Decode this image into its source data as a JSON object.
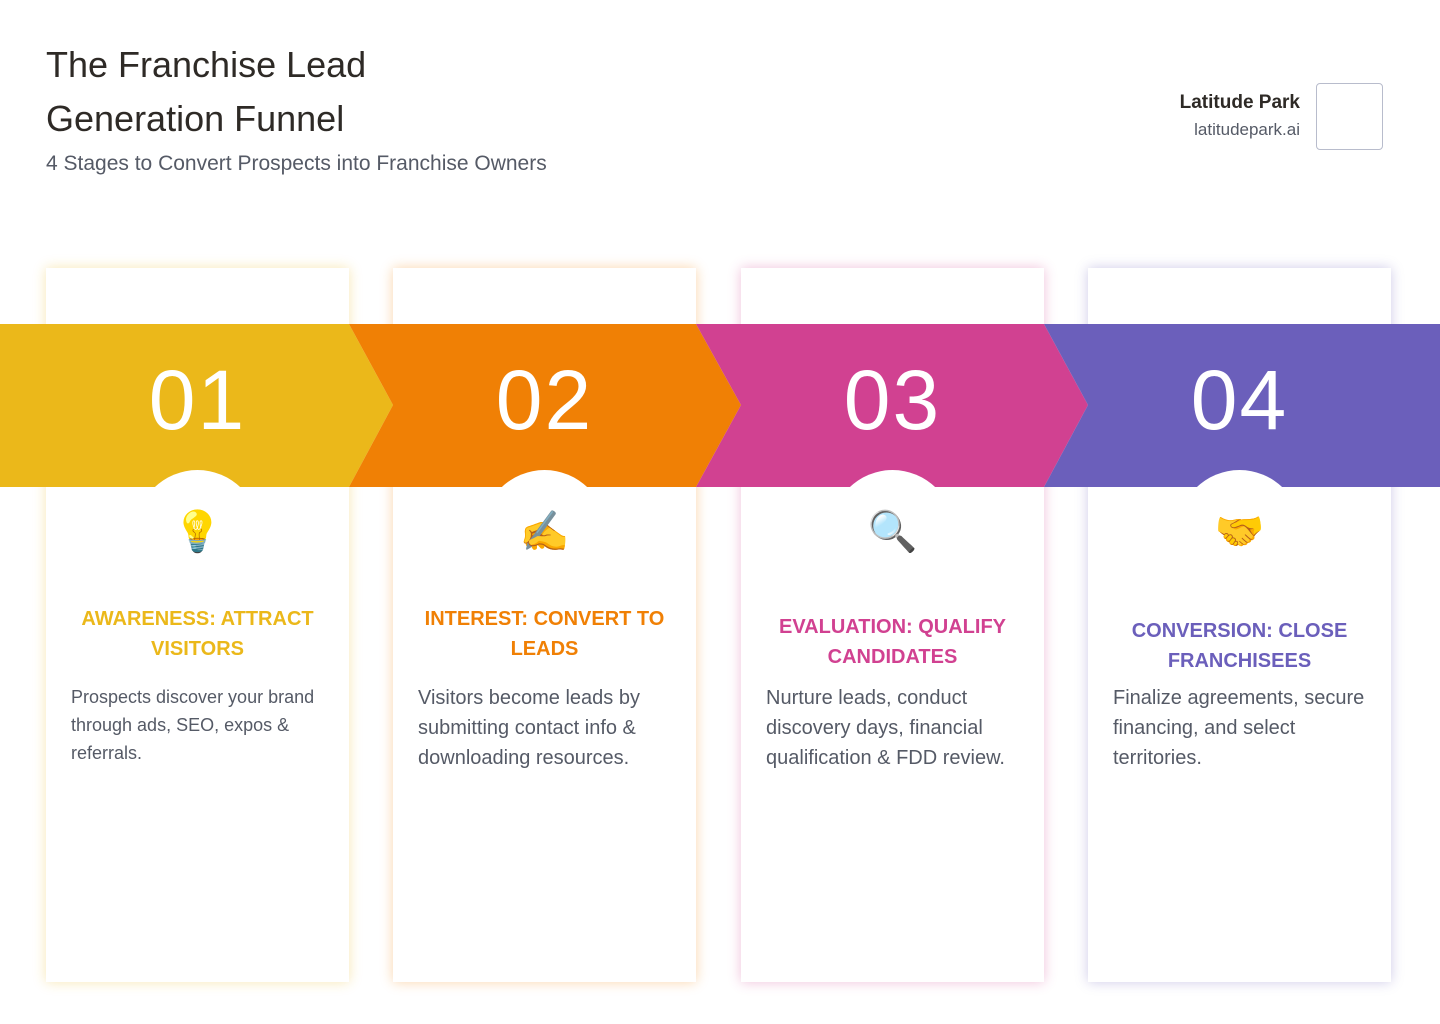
{
  "header": {
    "title": "The Franchise Lead Generation Funnel",
    "subtitle": "4 Stages to Convert Prospects into Franchise Owners"
  },
  "brand": {
    "name": "Latitude Park",
    "url": "latitudepark.ai"
  },
  "stages": [
    {
      "number": "01",
      "icon": "💡",
      "title": "AWARENESS: ATTRACT VISITORS",
      "description": "Prospects discover your brand through ads, SEO, expos & referrals.",
      "color": "#EBB81A"
    },
    {
      "number": "02",
      "icon": "✍️",
      "title": "INTEREST: CONVERT TO LEADS",
      "description": "Visitors become leads by submitting contact info & downloading resources.",
      "color": "#F08005"
    },
    {
      "number": "03",
      "icon": "🔍",
      "title": "EVALUATION: QUALIFY CANDIDATES",
      "description": "Nurture leads, conduct discovery days, financial qualification & FDD review.",
      "color": "#D14191"
    },
    {
      "number": "04",
      "icon": "🤝",
      "title": "CONVERSION: CLOSE FRANCHISEES",
      "description": "Finalize agreements, secure financing, and select territories.",
      "color": "#6B5FBB"
    }
  ]
}
